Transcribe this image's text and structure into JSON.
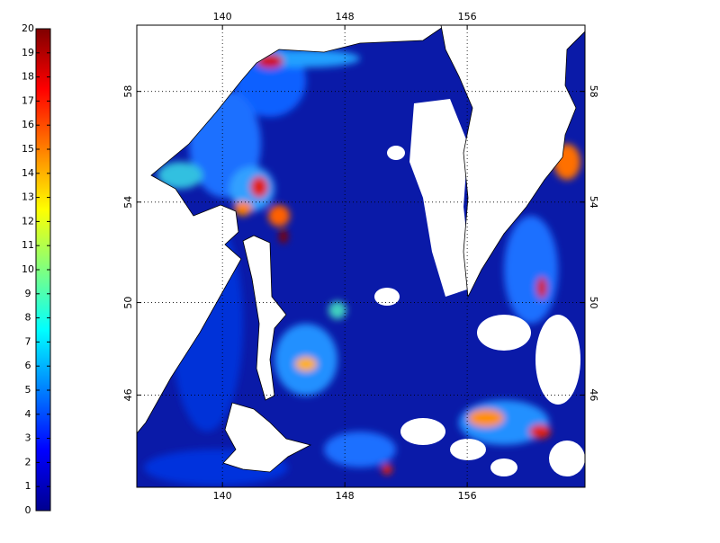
{
  "colorbar": {
    "lim": [
      0,
      20
    ],
    "ticks": [
      0,
      1,
      2,
      3,
      4,
      5,
      6,
      7,
      8,
      9,
      10,
      11,
      12,
      13,
      14,
      15,
      16,
      17,
      18,
      19,
      20
    ]
  },
  "map": {
    "lonlim": [
      134.4,
      163.7
    ],
    "latlim": [
      41.7,
      60.2
    ],
    "lonticks": [
      140,
      148,
      156
    ],
    "latticks": [
      46,
      50,
      54,
      58
    ],
    "grid": true
  }
}
